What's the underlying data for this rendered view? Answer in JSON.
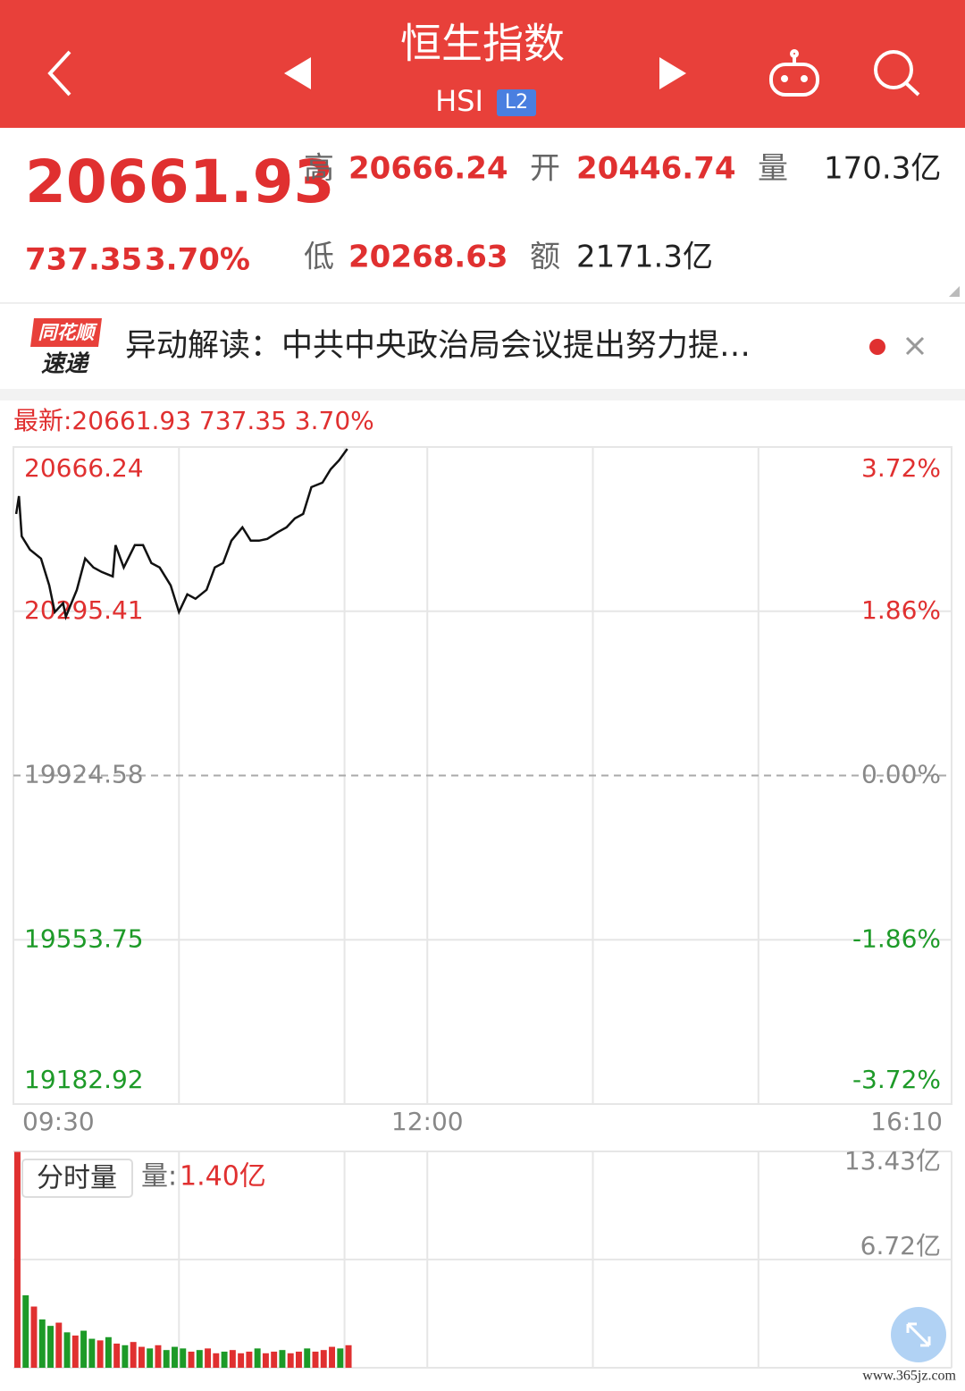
{
  "header": {
    "title": "恒生指数",
    "code": "HSI",
    "badge": "L2"
  },
  "quote": {
    "price": 20661.93,
    "change": 737.35,
    "change_pct": "3.70%",
    "high_label": "高",
    "high": 20666.24,
    "open_label": "开",
    "open": 20446.74,
    "volume_label": "量",
    "volume": "170.3亿",
    "low_label": "低",
    "low": 20268.63,
    "amount_label": "额",
    "amount": "2171.3亿"
  },
  "news": {
    "logo_top": "同花顺",
    "logo_bottom": "速递",
    "text": "异动解读：中共中央政治局会议提出努力提…"
  },
  "watermark": "www.365jz.com",
  "chart_data": [
    {
      "type": "line",
      "title": "最新:20661.93 737.35 3.70%",
      "color": "#111111",
      "up_color": "#e03030",
      "down_color": "#1d9a28",
      "flat_color": "#888888",
      "x": [
        1,
        2,
        3,
        6,
        10,
        13,
        15,
        18,
        19,
        23,
        26,
        29,
        32,
        36,
        37,
        40,
        44,
        47,
        50,
        53,
        57,
        60,
        63,
        66,
        70,
        73,
        76,
        79,
        83,
        86,
        89,
        92,
        96,
        99,
        102,
        105,
        108,
        112,
        115,
        118,
        121
      ],
      "values": [
        20515.1,
        20555.4,
        20464.7,
        20434.5,
        20414.3,
        20353.9,
        20293.4,
        20313.6,
        20283.3,
        20343.8,
        20414.3,
        20394.2,
        20384.1,
        20374.0,
        20444.6,
        20394.2,
        20444.6,
        20444.6,
        20404.3,
        20394.2,
        20353.9,
        20293.4,
        20333.7,
        20323.6,
        20343.8,
        20394.2,
        20404.3,
        20454.7,
        20484.9,
        20454.7,
        20454.7,
        20458.7,
        20474.8,
        20484.9,
        20505.0,
        20515.1,
        20575.6,
        20585.7,
        20615.9,
        20636.0,
        20661.93
      ],
      "xlim": [
        0,
        340
      ],
      "xticks": [
        {
          "value": 0,
          "label": "09:30"
        },
        {
          "value": 150,
          "label": "12:00"
        },
        {
          "value": 340,
          "label": "16:10"
        }
      ],
      "xgrid": [
        60,
        120,
        150,
        210,
        270
      ],
      "ylim": [
        19182.92,
        20666.24
      ],
      "yticks": [
        20666.24,
        20295.41,
        19924.58,
        19553.75,
        19182.92
      ],
      "y2lim": [
        -3.72,
        3.72
      ],
      "y2ticks": [
        {
          "value": 3.72,
          "label": "3.72%"
        },
        {
          "value": 1.86,
          "label": "1.86%"
        },
        {
          "value": 0,
          "label": "0.00%"
        },
        {
          "value": -1.86,
          "label": "-1.86%"
        },
        {
          "value": -3.72,
          "label": "-3.72%"
        }
      ],
      "grid": true
    },
    {
      "type": "bar",
      "button": "分时量",
      "label": "量:",
      "current": "1.40亿",
      "x": [
        0,
        3,
        6,
        9,
        12,
        15,
        18,
        21,
        24,
        27,
        30,
        33,
        36,
        39,
        42,
        45,
        48,
        51,
        54,
        57,
        60,
        63,
        66,
        69,
        72,
        75,
        78,
        81,
        84,
        87,
        90,
        93,
        96,
        99,
        102,
        105,
        108,
        111,
        114,
        117,
        120
      ],
      "values": [
        13.4,
        4.5,
        3.8,
        3.0,
        2.6,
        2.8,
        2.2,
        2.0,
        2.3,
        1.8,
        1.7,
        1.9,
        1.5,
        1.4,
        1.6,
        1.3,
        1.2,
        1.4,
        1.1,
        1.3,
        1.2,
        1.0,
        1.1,
        1.2,
        0.9,
        1.0,
        1.1,
        0.9,
        1.0,
        1.2,
        0.9,
        1.0,
        1.1,
        0.9,
        1.0,
        1.2,
        1.0,
        1.1,
        1.3,
        1.2,
        1.4
      ],
      "colors": [
        "#e03030",
        "#1d9a28",
        "#e03030",
        "#1d9a28",
        "#1d9a28",
        "#e03030",
        "#1d9a28",
        "#e03030",
        "#1d9a28",
        "#1d9a28",
        "#e03030",
        "#1d9a28",
        "#e03030",
        "#1d9a28",
        "#e03030",
        "#e03030",
        "#1d9a28",
        "#e03030",
        "#1d9a28",
        "#1d9a28",
        "#1d9a28",
        "#e03030",
        "#1d9a28",
        "#e03030",
        "#e03030",
        "#1d9a28",
        "#e03030",
        "#e03030",
        "#e03030",
        "#1d9a28",
        "#e03030",
        "#e03030",
        "#1d9a28",
        "#e03030",
        "#e03030",
        "#1d9a28",
        "#e03030",
        "#e03030",
        "#e03030",
        "#1d9a28",
        "#e03030"
      ],
      "xlim": [
        0,
        340
      ],
      "xgrid": [
        60,
        120,
        150,
        210,
        270
      ],
      "ylim": [
        0,
        13.43
      ],
      "yticks": [
        {
          "value": 13.43,
          "label": "13.43亿"
        },
        {
          "value": 6.72,
          "label": "6.72亿"
        }
      ],
      "grid": true
    }
  ]
}
